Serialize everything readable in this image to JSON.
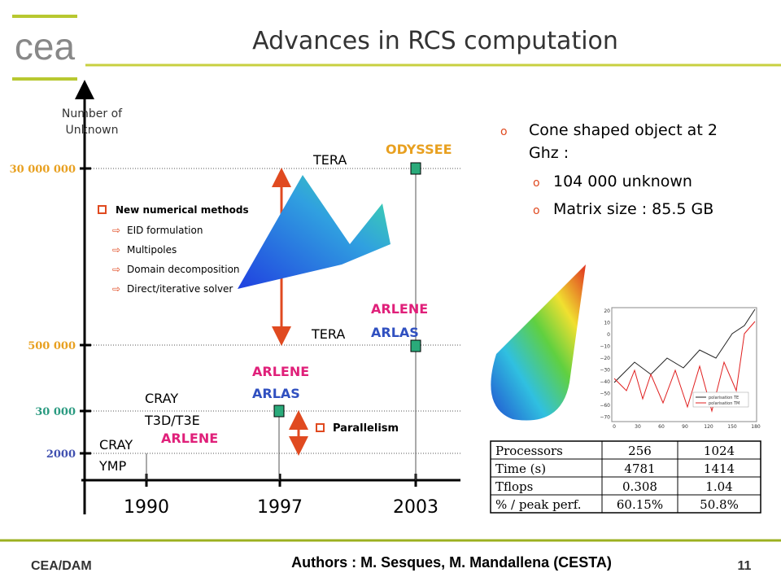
{
  "logo": "cea",
  "title": "Advances in RCS computation",
  "axis": {
    "label": [
      "Number of",
      "Unknown"
    ],
    "levels": [
      "30 000 000",
      "500 000",
      "30 000",
      "2000"
    ],
    "years": [
      "1990",
      "1997",
      "2003"
    ]
  },
  "labels": {
    "tera_top": "TERA",
    "odyssee": "ODYSSEE",
    "tera_mid": "TERA",
    "arlene_2003": "ARLENE",
    "arlas_2003": "ARLAS",
    "arlene_1997": "ARLENE",
    "arlas_1997": "ARLAS",
    "cray_t3d": [
      "CRAY",
      "T3D/T3E"
    ],
    "arlene_1990": "ARLENE",
    "cray_ymp": [
      "CRAY",
      "YMP"
    ]
  },
  "methods": {
    "title": "New numerical methods",
    "items": [
      "EID formulation",
      "Multipoles",
      "Domain decomposition",
      "Direct/iterative solver"
    ]
  },
  "parallelism": "Parallelism",
  "case": {
    "title": [
      "Cone shaped object at  2",
      "Ghz :"
    ],
    "items": [
      "104 000 unknown",
      "Matrix size :  85.5 GB"
    ]
  },
  "plot": {
    "yticks": [
      "20",
      "10",
      "0",
      "−10",
      "−20",
      "−30",
      "−40",
      "−50",
      "−60",
      "−70"
    ],
    "xticks": [
      "0",
      "30",
      "60",
      "90",
      "120",
      "150",
      "180"
    ],
    "legend": [
      "polarisation TE",
      "polarisation TM"
    ]
  },
  "table": {
    "rows": [
      [
        "Processors",
        "256",
        "1024"
      ],
      [
        "Time (s)",
        "4781",
        "1414"
      ],
      [
        "Tflops",
        "0.308",
        "1.04"
      ],
      [
        "% / peak perf.",
        "60.15%",
        "50.8%"
      ]
    ]
  },
  "footer": {
    "left": "CEA/DAM",
    "center": "Authors : M. Sesques, M. Mandallena (CESTA)",
    "page": "11"
  }
}
